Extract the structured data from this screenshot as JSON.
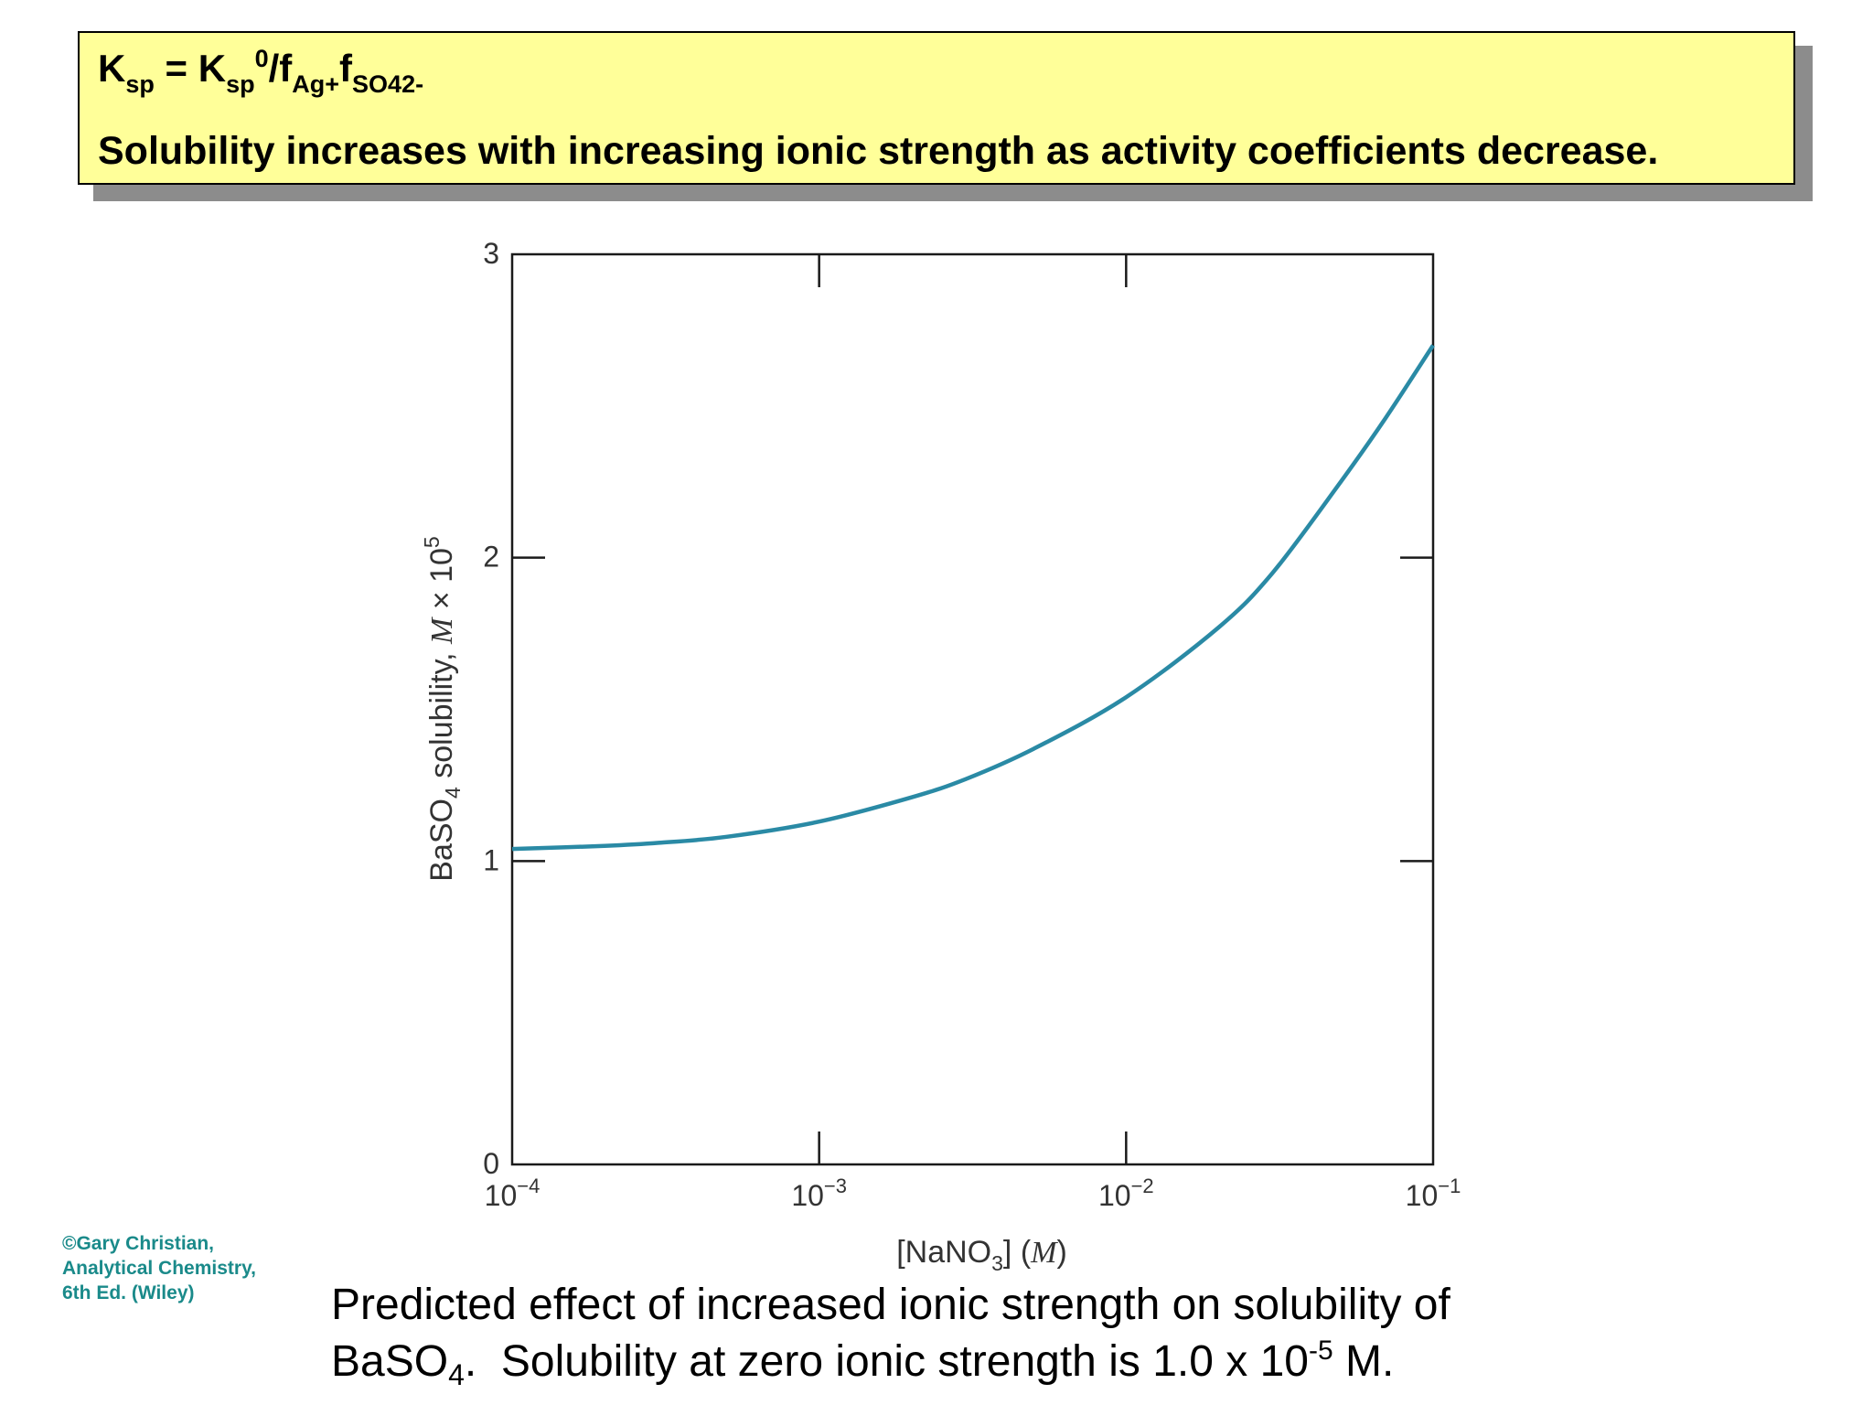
{
  "header": {
    "formula": {
      "ksp": "K",
      "ksp_sub": "sp",
      "equals": " = ",
      "ksp0": "K",
      "ksp0_sub": "sp",
      "ksp0_sup": "0",
      "slash_f": "/f",
      "f1_sub": "Ag+",
      "f2": "f",
      "f2_sub": "SO42-"
    },
    "statement": "Solubility increases with increasing ionic strength as activity coefficients decrease."
  },
  "credit": {
    "line1": "©Gary Christian,",
    "line2": "Analytical Chemistry,",
    "line3": "6th Ed. (Wiley)"
  },
  "caption": {
    "line1": "Predicted effect of increased ionic strength on solubility of",
    "line2_a": "BaSO",
    "line2_sub": "4",
    "line2_b": ".  Solubility at zero ionic strength is 1.0 x 10",
    "line2_sup": "-5",
    "line2_c": " M."
  },
  "chart_data": {
    "type": "line",
    "xscale": "log",
    "xlim": [
      0.0001,
      0.1
    ],
    "ylim": [
      0,
      3
    ],
    "grid": false,
    "xlabel": "[NaNO3] (M)",
    "ylabel": "BaSO4 solubility, M × 10^5",
    "x_ticks": [
      {
        "value": 0.0001,
        "base": "10",
        "exp": "−4"
      },
      {
        "value": 0.001,
        "base": "10",
        "exp": "−3"
      },
      {
        "value": 0.01,
        "base": "10",
        "exp": "−2"
      },
      {
        "value": 0.1,
        "base": "10",
        "exp": "−1"
      }
    ],
    "y_ticks": [
      "0",
      "1",
      "2",
      "3"
    ],
    "series_color": "#2a8aa5",
    "series": [
      {
        "x": [
          0.0001,
          0.0002,
          0.0003,
          0.0005,
          0.001,
          0.002,
          0.003,
          0.005,
          0.01,
          0.02,
          0.03,
          0.05,
          0.07,
          0.1
        ],
        "y": [
          1.04,
          1.05,
          1.06,
          1.08,
          1.13,
          1.21,
          1.27,
          1.37,
          1.54,
          1.77,
          1.95,
          2.25,
          2.46,
          2.7
        ]
      }
    ]
  }
}
